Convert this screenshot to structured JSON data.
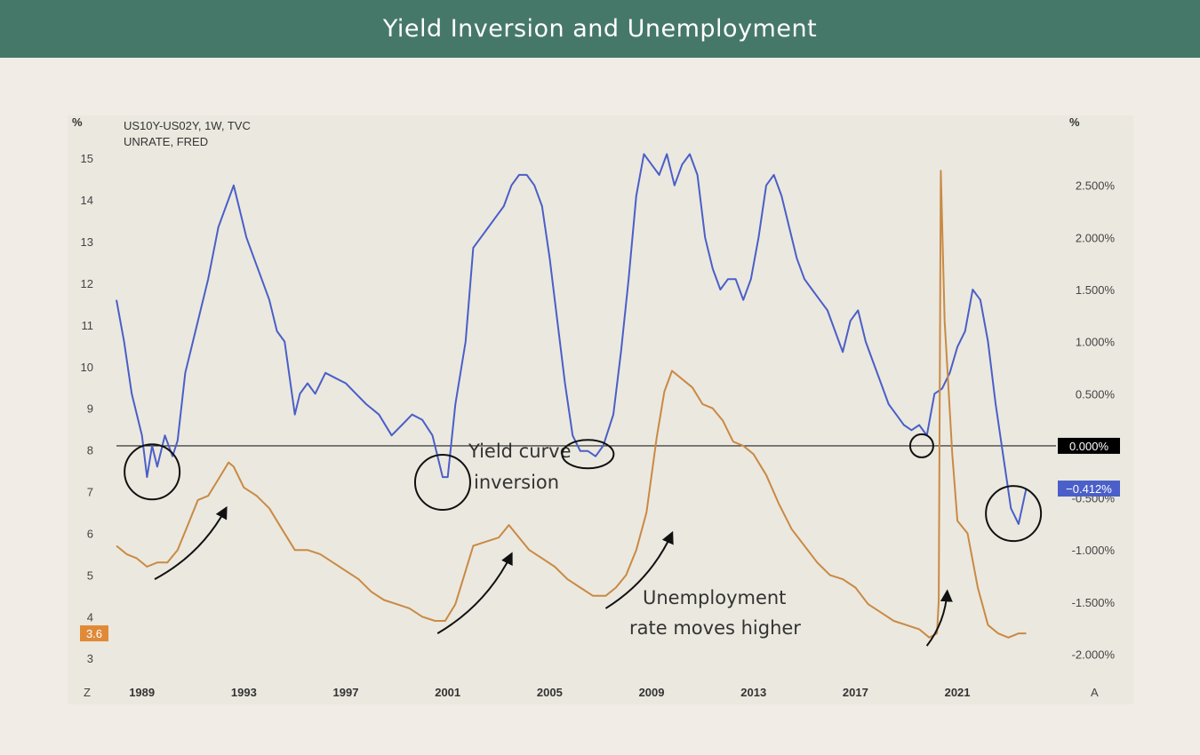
{
  "title": "Yield Inversion and Unemployment",
  "chart_data": {
    "type": "line",
    "legend": [
      "US10Y-US02Y, 1W, TVC",
      "UNRATE, FRED"
    ],
    "left_axis": {
      "unit": "%",
      "ticks": [
        3,
        4,
        5,
        6,
        7,
        8,
        9,
        10,
        11,
        12,
        13,
        14,
        15
      ],
      "range": [
        2.6,
        15.6
      ]
    },
    "right_axis": {
      "unit": "%",
      "ticks": [
        2.5,
        2.0,
        1.5,
        1.0,
        0.5,
        0.0,
        -0.5,
        -1.0,
        -1.5,
        -2.0
      ],
      "tick_labels": [
        "2.500%",
        "2.000%",
        "1.500%",
        "1.000%",
        "0.500%",
        "0.000%",
        "-0.500%",
        "-1.000%",
        "-1.500%",
        "-2.000%"
      ],
      "range": [
        -2.2,
        3.0
      ]
    },
    "x_ticks": [
      "1989",
      "1993",
      "1997",
      "2001",
      "2005",
      "2009",
      "2013",
      "2017",
      "2021"
    ],
    "x_range": [
      1988.0,
      2024.8
    ],
    "corner_labels": {
      "left": "Z",
      "right": "A"
    },
    "zero_line_label": "0.000%",
    "current": {
      "spread_label": "−0.412%",
      "unrate_label": "3.6"
    },
    "colors": {
      "spread": "#4a5fc8",
      "unrate": "#c98a44",
      "zero_badge": "#000000",
      "spread_badge": "#4a5fc8",
      "unrate_badge": "#e08a38"
    },
    "series": [
      {
        "name": "US10Y-US02Y, 1W, TVC",
        "axis": "right",
        "x": [
          1988.0,
          1988.3,
          1988.6,
          1989.0,
          1989.2,
          1989.4,
          1989.6,
          1989.9,
          1990.2,
          1990.4,
          1990.7,
          1991.0,
          1991.3,
          1991.6,
          1992.0,
          1992.3,
          1992.6,
          1992.9,
          1993.1,
          1993.4,
          1993.7,
          1994.0,
          1994.3,
          1994.6,
          1995.0,
          1995.2,
          1995.5,
          1995.8,
          1996.2,
          1996.6,
          1997.0,
          1997.4,
          1997.8,
          1998.3,
          1998.8,
          1999.2,
          1999.6,
          2000.0,
          2000.4,
          2000.8,
          2001.0,
          2001.3,
          2001.7,
          2002.0,
          2002.3,
          2002.6,
          2002.9,
          2003.2,
          2003.5,
          2003.8,
          2004.1,
          2004.4,
          2004.7,
          2005.0,
          2005.3,
          2005.6,
          2005.9,
          2006.2,
          2006.5,
          2006.8,
          2007.1,
          2007.5,
          2007.8,
          2008.1,
          2008.4,
          2008.7,
          2009.0,
          2009.3,
          2009.6,
          2009.9,
          2010.2,
          2010.5,
          2010.8,
          2011.1,
          2011.4,
          2011.7,
          2012.0,
          2012.3,
          2012.6,
          2012.9,
          2013.2,
          2013.5,
          2013.8,
          2014.1,
          2014.4,
          2014.7,
          2015.0,
          2015.3,
          2015.6,
          2015.9,
          2016.2,
          2016.5,
          2016.8,
          2017.1,
          2017.4,
          2017.7,
          2018.0,
          2018.3,
          2018.6,
          2018.9,
          2019.2,
          2019.5,
          2019.8,
          2020.1,
          2020.4,
          2020.7,
          2021.0,
          2021.3,
          2021.6,
          2021.9,
          2022.2,
          2022.5,
          2022.8,
          2023.1,
          2023.4,
          2023.7
        ],
        "y": [
          1.4,
          1.0,
          0.5,
          0.1,
          -0.3,
          0.0,
          -0.2,
          0.1,
          -0.1,
          0.05,
          0.7,
          1.0,
          1.3,
          1.6,
          2.1,
          2.3,
          2.5,
          2.2,
          2.0,
          1.8,
          1.6,
          1.4,
          1.1,
          1.0,
          0.3,
          0.5,
          0.6,
          0.5,
          0.7,
          0.65,
          0.6,
          0.5,
          0.4,
          0.3,
          0.1,
          0.2,
          0.3,
          0.25,
          0.1,
          -0.3,
          -0.3,
          0.4,
          1.0,
          1.9,
          2.0,
          2.1,
          2.2,
          2.3,
          2.5,
          2.6,
          2.6,
          2.5,
          2.3,
          1.8,
          1.2,
          0.6,
          0.1,
          -0.05,
          -0.05,
          -0.1,
          0.0,
          0.3,
          0.9,
          1.6,
          2.4,
          2.8,
          2.7,
          2.6,
          2.8,
          2.5,
          2.7,
          2.8,
          2.6,
          2.0,
          1.7,
          1.5,
          1.6,
          1.6,
          1.4,
          1.6,
          2.0,
          2.5,
          2.6,
          2.4,
          2.1,
          1.8,
          1.6,
          1.5,
          1.4,
          1.3,
          1.1,
          0.9,
          1.2,
          1.3,
          1.0,
          0.8,
          0.6,
          0.4,
          0.3,
          0.2,
          0.15,
          0.2,
          0.1,
          0.5,
          0.55,
          0.7,
          0.95,
          1.1,
          1.5,
          1.4,
          1.0,
          0.4,
          -0.1,
          -0.6,
          -0.75,
          -0.41
        ]
      },
      {
        "name": "UNRATE, FRED",
        "axis": "left",
        "x": [
          1988.0,
          1988.4,
          1988.8,
          1989.2,
          1989.6,
          1990.0,
          1990.4,
          1990.8,
          1991.2,
          1991.6,
          1992.0,
          1992.4,
          1992.6,
          1993.0,
          1993.5,
          1994.0,
          1994.5,
          1995.0,
          1995.5,
          1996.0,
          1996.5,
          1997.0,
          1997.5,
          1998.0,
          1998.5,
          1999.0,
          1999.5,
          2000.0,
          2000.5,
          2000.9,
          2001.3,
          2001.7,
          2002.0,
          2002.5,
          2003.0,
          2003.4,
          2003.8,
          2004.2,
          2004.7,
          2005.2,
          2005.7,
          2006.2,
          2006.7,
          2007.2,
          2007.6,
          2008.0,
          2008.4,
          2008.8,
          2009.2,
          2009.5,
          2009.8,
          2010.2,
          2010.6,
          2011.0,
          2011.4,
          2011.8,
          2012.2,
          2012.6,
          2013.0,
          2013.5,
          2014.0,
          2014.5,
          2015.0,
          2015.5,
          2016.0,
          2016.5,
          2017.0,
          2017.5,
          2018.0,
          2018.5,
          2019.0,
          2019.5,
          2019.9,
          2020.2,
          2020.27,
          2020.35,
          2020.5,
          2020.8,
          2021.0,
          2021.4,
          2021.8,
          2022.2,
          2022.6,
          2023.0,
          2023.4,
          2023.7
        ],
        "y": [
          5.7,
          5.5,
          5.4,
          5.2,
          5.3,
          5.3,
          5.6,
          6.2,
          6.8,
          6.9,
          7.3,
          7.7,
          7.6,
          7.1,
          6.9,
          6.6,
          6.1,
          5.6,
          5.6,
          5.5,
          5.3,
          5.1,
          4.9,
          4.6,
          4.4,
          4.3,
          4.2,
          4.0,
          3.9,
          3.9,
          4.3,
          5.1,
          5.7,
          5.8,
          5.9,
          6.2,
          5.9,
          5.6,
          5.4,
          5.2,
          4.9,
          4.7,
          4.5,
          4.5,
          4.7,
          5.0,
          5.6,
          6.5,
          8.3,
          9.4,
          9.9,
          9.7,
          9.5,
          9.1,
          9.0,
          8.7,
          8.2,
          8.1,
          7.9,
          7.4,
          6.7,
          6.1,
          5.7,
          5.3,
          5.0,
          4.9,
          4.7,
          4.3,
          4.1,
          3.9,
          3.8,
          3.7,
          3.5,
          3.6,
          4.4,
          14.7,
          11.1,
          7.9,
          6.3,
          6.0,
          4.7,
          3.8,
          3.6,
          3.5,
          3.6,
          3.6
        ]
      }
    ],
    "annotations": [
      {
        "text_lines": [
          "Yield curve",
          "inversion"
        ]
      },
      {
        "text_lines": [
          "Unemployment",
          "rate moves higher"
        ]
      }
    ],
    "circled_regions": [
      {
        "x": 1989.4,
        "y_right": -0.25
      },
      {
        "x": 2000.8,
        "y_right": -0.35
      },
      {
        "x": 2006.5,
        "y_right": -0.08
      },
      {
        "x": 2019.6,
        "y_right": 0.0
      },
      {
        "x": 2023.2,
        "y_right": -0.65
      }
    ],
    "arrows": [
      {
        "from_x": 1989.5,
        "from_y_left": 4.9,
        "to_x": 1992.3,
        "to_y_left": 6.6
      },
      {
        "from_x": 2000.6,
        "from_y_left": 3.6,
        "to_x": 2003.5,
        "to_y_left": 5.5
      },
      {
        "from_x": 2007.2,
        "from_y_left": 4.2,
        "to_x": 2009.8,
        "to_y_left": 6.0
      },
      {
        "from_x": 2019.8,
        "from_y_left": 3.3,
        "to_x": 2020.6,
        "to_y_left": 4.6
      }
    ]
  }
}
